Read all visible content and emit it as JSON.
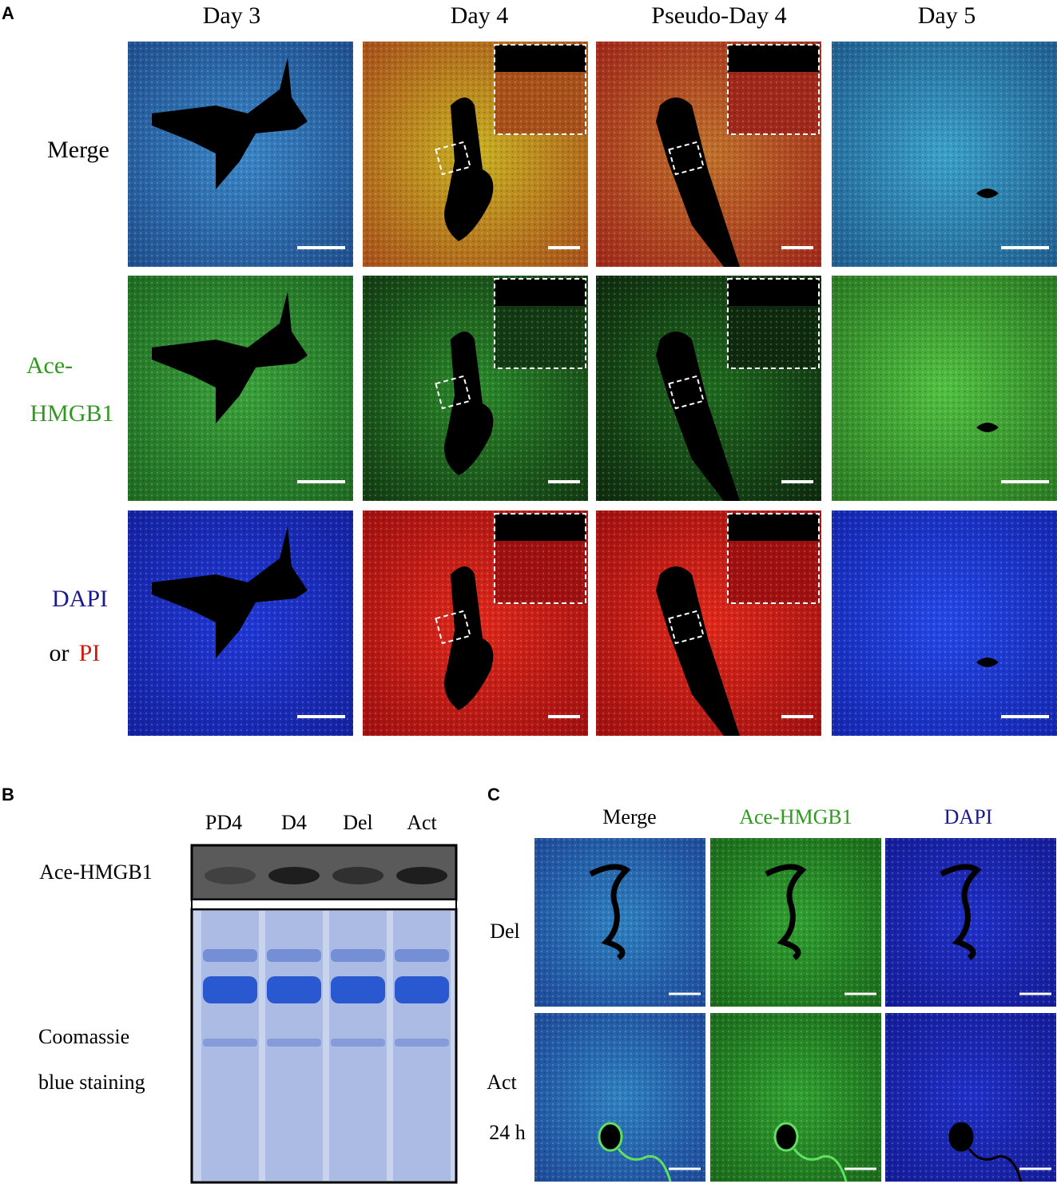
{
  "panel_a": {
    "label": "A",
    "columns": [
      "Day 3",
      "Day 4",
      "Pseudo-Day 4",
      "Day 5"
    ],
    "rows": {
      "merge": "Merge",
      "ace": [
        "Ace-",
        "HMGB1"
      ],
      "stain": [
        "DAPI",
        "or",
        "PI"
      ]
    }
  },
  "panel_b": {
    "label": "B",
    "lanes": [
      "PD4",
      "D4",
      "Del",
      "Act"
    ],
    "blot_label": "Ace-HMGB1",
    "gel_label": [
      "Coomassie",
      "blue staining"
    ]
  },
  "panel_c": {
    "label": "C",
    "columns": [
      "Merge",
      "Ace-HMGB1",
      "DAPI"
    ],
    "rows": [
      "Del",
      "Act"
    ],
    "row_note": "24 h"
  }
}
